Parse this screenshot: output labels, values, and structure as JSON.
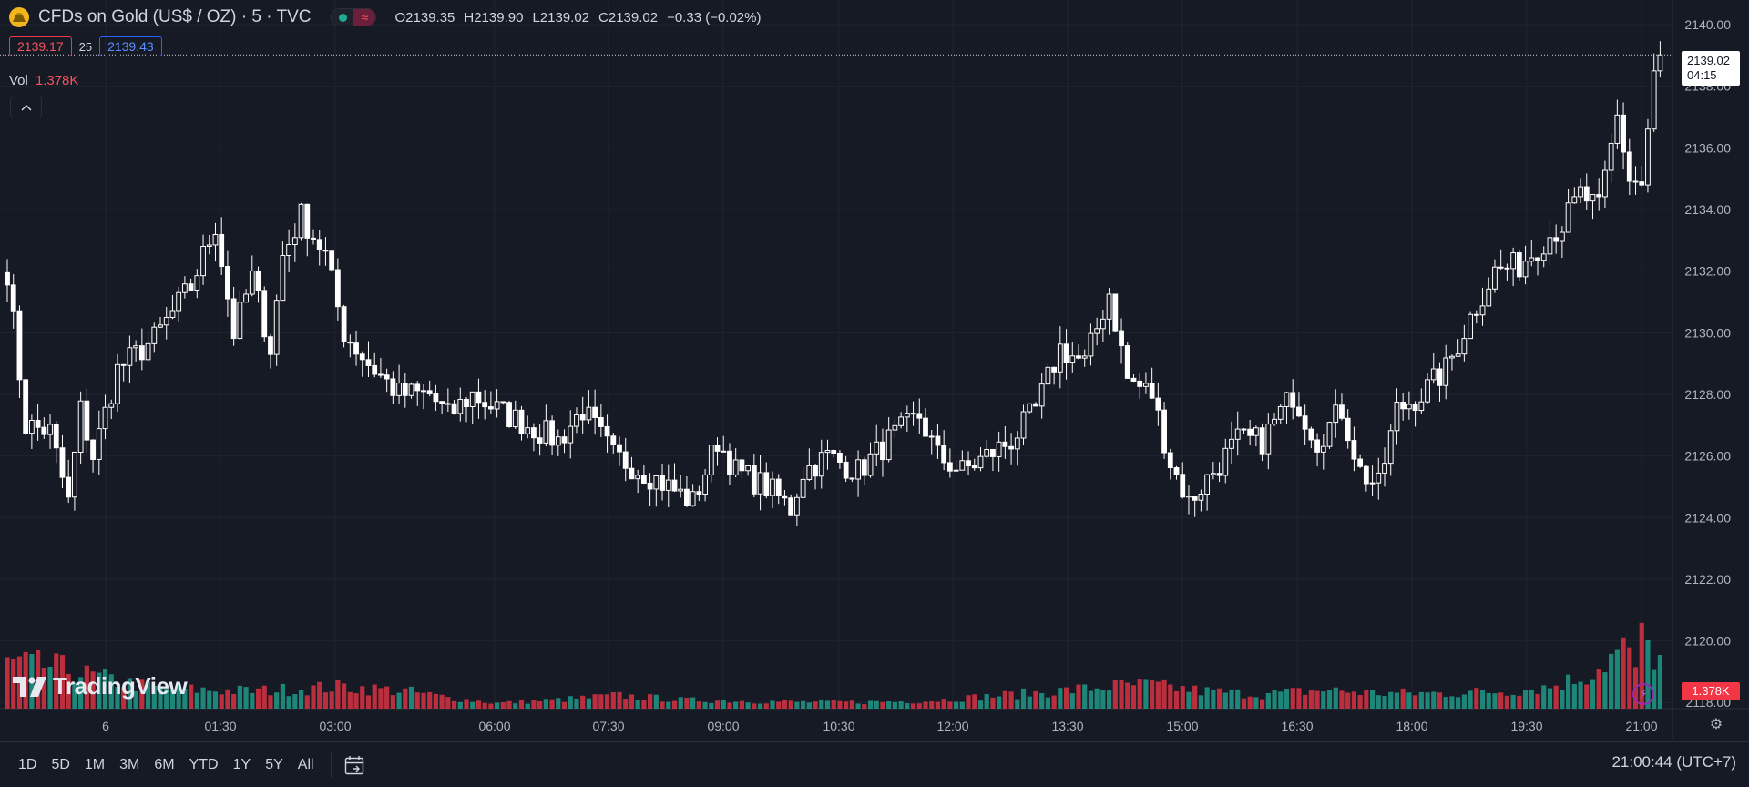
{
  "header": {
    "title": "CFDs on Gold (US$ / OZ) · 5 · TVC",
    "ohlc": {
      "open": "O2139.35",
      "high": "H2139.90",
      "low": "L2139.02",
      "close": "C2139.02",
      "change": "−0.33 (−0.02%)"
    },
    "bid": "2139.17",
    "spread": "25",
    "ask": "2139.43",
    "vol_label": "Vol",
    "vol_value": "1.378K"
  },
  "logo_text": "TradingView",
  "price_flag": {
    "price": "2139.02",
    "countdown": "04:15"
  },
  "volume_flag": "1.378K",
  "toolbar": {
    "ranges": [
      "1D",
      "5D",
      "1M",
      "3M",
      "6M",
      "YTD",
      "1Y",
      "5Y",
      "All"
    ],
    "clock": "21:00:44 (UTC+7)"
  },
  "colors": {
    "background": "#161a25",
    "up_volume": "#22ab94",
    "down_volume": "#f23645",
    "candle": "#ffffff",
    "grid": "#1f2430"
  },
  "icons": [
    "gold-coin-icon",
    "market-open-dot-icon",
    "wave-icon",
    "chevron-up-icon",
    "tradingview-logo-icon",
    "flash-icon",
    "settings-icon",
    "calendar-icon"
  ],
  "chart_data": {
    "type": "candlestick",
    "title": "CFDs on Gold (US$ / OZ) · 5 · TVC",
    "interval_minutes": 5,
    "y_axis": {
      "ticks": [
        2118,
        2120,
        2122,
        2124,
        2126,
        2128,
        2130,
        2132,
        2134,
        2136,
        2138,
        2140
      ],
      "ylim": [
        2117.8,
        2140.8
      ]
    },
    "x_axis": {
      "ticks": [
        "6",
        "01:30",
        "03:00",
        "06:00",
        "07:30",
        "09:00",
        "10:30",
        "12:00",
        "13:30",
        "15:00",
        "16:30",
        "18:00",
        "19:30",
        "21:00"
      ]
    },
    "current_price": 2139.02,
    "last_volume": "1.378K",
    "grid": true,
    "close_path": [
      [
        0,
        2132.0
      ],
      [
        3,
        2127.0
      ],
      [
        7,
        2126.8
      ],
      [
        10,
        2124.5
      ],
      [
        12,
        2127.5
      ],
      [
        14,
        2126.0
      ],
      [
        18,
        2128.8
      ],
      [
        24,
        2129.8
      ],
      [
        30,
        2131.5
      ],
      [
        34,
        2133.5
      ],
      [
        37,
        2130.0
      ],
      [
        40,
        2131.8
      ],
      [
        43,
        2129.5
      ],
      [
        45,
        2132.5
      ],
      [
        48,
        2133.8
      ],
      [
        52,
        2132.5
      ],
      [
        55,
        2130.0
      ],
      [
        59,
        2129.0
      ],
      [
        64,
        2128.0
      ],
      [
        69,
        2128.0
      ],
      [
        72,
        2127.3
      ],
      [
        76,
        2128.0
      ],
      [
        80,
        2127.5
      ],
      [
        85,
        2127.0
      ],
      [
        90,
        2126.5
      ],
      [
        94,
        2127.5
      ],
      [
        99,
        2126.0
      ],
      [
        104,
        2125.5
      ],
      [
        108,
        2125.0
      ],
      [
        112,
        2124.5
      ],
      [
        116,
        2126.5
      ],
      [
        119,
        2125.5
      ],
      [
        124,
        2125.0
      ],
      [
        128,
        2124.3
      ],
      [
        130,
        2125.5
      ],
      [
        134,
        2126.0
      ],
      [
        139,
        2125.5
      ],
      [
        144,
        2126.5
      ],
      [
        149,
        2127.3
      ],
      [
        152,
        2126.0
      ],
      [
        156,
        2125.5
      ],
      [
        160,
        2126.0
      ],
      [
        164,
        2126.5
      ],
      [
        168,
        2127.5
      ],
      [
        172,
        2129.5
      ],
      [
        176,
        2129.0
      ],
      [
        180,
        2131.3
      ],
      [
        183,
        2128.5
      ],
      [
        187,
        2128.0
      ],
      [
        190,
        2125.8
      ],
      [
        193,
        2124.5
      ],
      [
        197,
        2125.5
      ],
      [
        201,
        2126.5
      ],
      [
        205,
        2126.5
      ],
      [
        210,
        2128.0
      ],
      [
        214,
        2126.5
      ],
      [
        218,
        2127.5
      ],
      [
        221,
        2125.5
      ],
      [
        224,
        2125.0
      ],
      [
        227,
        2127.5
      ],
      [
        231,
        2128.0
      ],
      [
        235,
        2128.8
      ],
      [
        239,
        2130.5
      ],
      [
        243,
        2132.0
      ],
      [
        247,
        2132.2
      ],
      [
        251,
        2133.0
      ],
      [
        254,
        2133.5
      ],
      [
        257,
        2134.5
      ],
      [
        260,
        2134.0
      ],
      [
        263,
        2137.0
      ],
      [
        265,
        2135.0
      ],
      [
        267,
        2134.8
      ],
      [
        269,
        2138.3
      ],
      [
        270,
        2139.02
      ]
    ],
    "volume_profile": [
      [
        0,
        0.42
      ],
      [
        8,
        0.38
      ],
      [
        15,
        0.28
      ],
      [
        25,
        0.18
      ],
      [
        40,
        0.16
      ],
      [
        55,
        0.2
      ],
      [
        65,
        0.16
      ],
      [
        72,
        0.1
      ],
      [
        80,
        0.05
      ],
      [
        90,
        0.08
      ],
      [
        100,
        0.12
      ],
      [
        110,
        0.08
      ],
      [
        120,
        0.07
      ],
      [
        130,
        0.06
      ],
      [
        140,
        0.06
      ],
      [
        150,
        0.07
      ],
      [
        162,
        0.12
      ],
      [
        172,
        0.16
      ],
      [
        180,
        0.2
      ],
      [
        186,
        0.22
      ],
      [
        195,
        0.16
      ],
      [
        205,
        0.13
      ],
      [
        215,
        0.17
      ],
      [
        225,
        0.14
      ],
      [
        235,
        0.14
      ],
      [
        245,
        0.16
      ],
      [
        252,
        0.2
      ],
      [
        258,
        0.3
      ],
      [
        261,
        0.42
      ],
      [
        264,
        0.55
      ],
      [
        266,
        0.38
      ],
      [
        267,
        0.62
      ],
      [
        269,
        0.48
      ],
      [
        270,
        0.45
      ]
    ]
  }
}
